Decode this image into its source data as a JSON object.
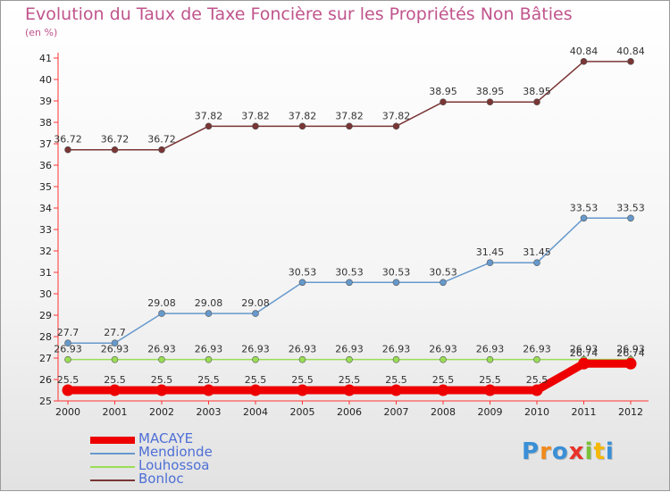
{
  "chart_data": {
    "type": "line",
    "title": "Evolution du Taux de Taxe Foncière sur les Propriétés Non Bâties",
    "ylabel": "(en %)",
    "xlabel": "",
    "x": [
      "2000",
      "2001",
      "2002",
      "2003",
      "2004",
      "2005",
      "2006",
      "2007",
      "2008",
      "2009",
      "2010",
      "2011",
      "2012"
    ],
    "ylim": [
      25,
      41
    ],
    "yticks": [
      "25",
      "26",
      "27",
      "28",
      "29",
      "30",
      "31",
      "32",
      "33",
      "34",
      "35",
      "36",
      "37",
      "38",
      "39",
      "40",
      "41"
    ],
    "series": [
      {
        "name": "MACAYE",
        "color": "#ee0000",
        "values": [
          25.5,
          25.5,
          25.5,
          25.5,
          25.5,
          25.5,
          25.5,
          25.5,
          25.5,
          25.5,
          25.5,
          26.74,
          26.74
        ],
        "labels": [
          "25.5",
          "25.5",
          "25.5",
          "25.5",
          "25.5",
          "25.5",
          "25.5",
          "25.5",
          "25.5",
          "25.5",
          "25.5",
          "26.74",
          "26.74"
        ]
      },
      {
        "name": "Mendionde",
        "color": "#6699cc",
        "values": [
          27.7,
          27.7,
          29.08,
          29.08,
          29.08,
          30.53,
          30.53,
          30.53,
          30.53,
          31.45,
          31.45,
          33.53,
          33.53
        ],
        "labels": [
          "27.7",
          "27.7",
          "29.08",
          "29.08",
          "29.08",
          "30.53",
          "30.53",
          "30.53",
          "30.53",
          "31.45",
          "31.45",
          "33.53",
          "33.53"
        ]
      },
      {
        "name": "Louhossoa",
        "color": "#99dd55",
        "values": [
          26.93,
          26.93,
          26.93,
          26.93,
          26.93,
          26.93,
          26.93,
          26.93,
          26.93,
          26.93,
          26.93,
          26.93,
          26.93
        ],
        "labels": [
          "26.93",
          "26.93",
          "26.93",
          "26.93",
          "26.93",
          "26.93",
          "26.93",
          "26.93",
          "26.93",
          "26.93",
          "26.93",
          "26.93",
          "26.93"
        ]
      },
      {
        "name": "Bonloc",
        "color": "#7a3535",
        "values": [
          36.72,
          36.72,
          36.72,
          37.82,
          37.82,
          37.82,
          37.82,
          37.82,
          38.95,
          38.95,
          38.95,
          40.84,
          40.84
        ],
        "labels": [
          "36.72",
          "36.72",
          "36.72",
          "37.82",
          "37.82",
          "37.82",
          "37.82",
          "37.82",
          "38.95",
          "38.95",
          "38.95",
          "40.84",
          "40.84"
        ]
      }
    ],
    "grid": false,
    "legend": "bottom-left"
  },
  "branding": {
    "logo_letters": [
      "P",
      "r",
      "o",
      "x",
      "i",
      "t",
      "i"
    ],
    "logo_colors": [
      "#3a8fd6",
      "#f08a1c",
      "#3a8fd6",
      "#e8332a",
      "#7bbf3a",
      "#f5b800",
      "#3a8fd6"
    ]
  }
}
